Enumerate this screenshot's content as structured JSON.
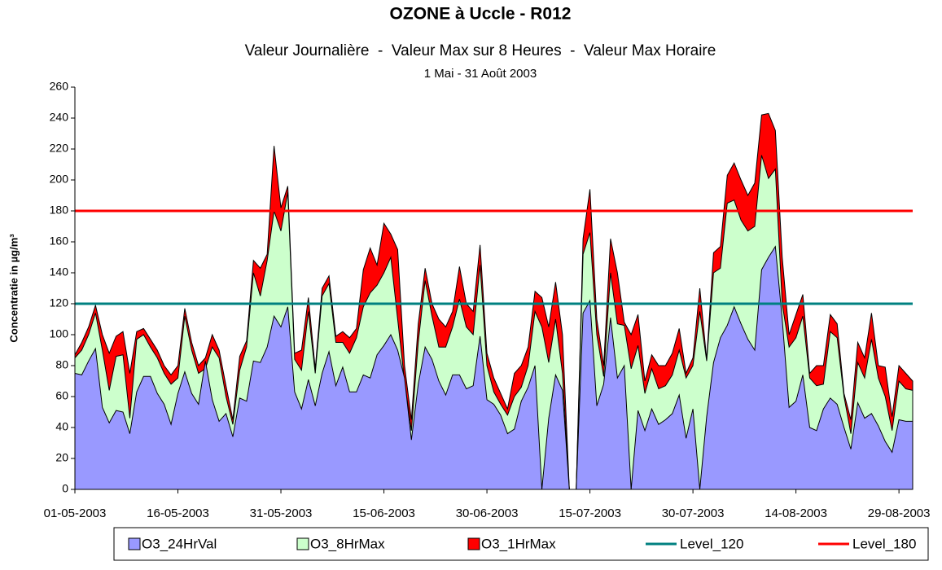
{
  "chart_data": {
    "type": "area",
    "title": "OZONE à Uccle - R012",
    "subtitle": "Valeur Journalière  -  Valeur Max sur 8 Heures  -  Valeur Max Horaire",
    "period": "1 Mai - 31 Août 2003",
    "y_label": "Concentratie in µg/m³",
    "categories": [
      "01-05-2003",
      "02-05-2003",
      "03-05-2003",
      "04-05-2003",
      "05-05-2003",
      "06-05-2003",
      "07-05-2003",
      "08-05-2003",
      "09-05-2003",
      "10-05-2003",
      "11-05-2003",
      "12-05-2003",
      "13-05-2003",
      "14-05-2003",
      "15-05-2003",
      "16-05-2003",
      "17-05-2003",
      "18-05-2003",
      "19-05-2003",
      "20-05-2003",
      "21-05-2003",
      "22-05-2003",
      "23-05-2003",
      "24-05-2003",
      "25-05-2003",
      "26-05-2003",
      "27-05-2003",
      "28-05-2003",
      "29-05-2003",
      "30-05-2003",
      "31-05-2003",
      "01-06-2003",
      "02-06-2003",
      "03-06-2003",
      "04-06-2003",
      "05-06-2003",
      "06-06-2003",
      "07-06-2003",
      "08-06-2003",
      "09-06-2003",
      "10-06-2003",
      "11-06-2003",
      "12-06-2003",
      "13-06-2003",
      "14-06-2003",
      "15-06-2003",
      "16-06-2003",
      "17-06-2003",
      "18-06-2003",
      "19-06-2003",
      "20-06-2003",
      "21-06-2003",
      "22-06-2003",
      "23-06-2003",
      "24-06-2003",
      "25-06-2003",
      "26-06-2003",
      "27-06-2003",
      "28-06-2003",
      "29-06-2003",
      "30-06-2003",
      "01-07-2003",
      "02-07-2003",
      "03-07-2003",
      "04-07-2003",
      "05-07-2003",
      "06-07-2003",
      "07-07-2003",
      "08-07-2003",
      "09-07-2003",
      "10-07-2003",
      "11-07-2003",
      "12-07-2003",
      "13-07-2003",
      "14-07-2003",
      "15-07-2003",
      "16-07-2003",
      "17-07-2003",
      "18-07-2003",
      "19-07-2003",
      "20-07-2003",
      "21-07-2003",
      "22-07-2003",
      "23-07-2003",
      "24-07-2003",
      "25-07-2003",
      "26-07-2003",
      "27-07-2003",
      "28-07-2003",
      "29-07-2003",
      "30-07-2003",
      "31-07-2003",
      "01-08-2003",
      "02-08-2003",
      "03-08-2003",
      "04-08-2003",
      "05-08-2003",
      "06-08-2003",
      "07-08-2003",
      "08-08-2003",
      "09-08-2003",
      "10-08-2003",
      "11-08-2003",
      "12-08-2003",
      "13-08-2003",
      "14-08-2003",
      "15-08-2003",
      "16-08-2003",
      "17-08-2003",
      "18-08-2003",
      "19-08-2003",
      "20-08-2003",
      "21-08-2003",
      "22-08-2003",
      "23-08-2003",
      "24-08-2003",
      "25-08-2003",
      "26-08-2003",
      "27-08-2003",
      "28-08-2003",
      "29-08-2003",
      "30-08-2003",
      "31-08-2003"
    ],
    "xticks": [
      "01-05-2003",
      "16-05-2003",
      "31-05-2003",
      "15-06-2003",
      "30-06-2003",
      "15-07-2003",
      "30-07-2003",
      "14-08-2003",
      "29-08-2003"
    ],
    "ylim": [
      0,
      260
    ],
    "yticks": [
      0,
      20,
      40,
      60,
      80,
      100,
      120,
      140,
      160,
      180,
      200,
      220,
      240,
      260
    ],
    "series": [
      {
        "name": "O3_24HrVal",
        "color": "#9999ff",
        "values": [
          75,
          74,
          83,
          91,
          53,
          43,
          51,
          50,
          36,
          63,
          73,
          73,
          62,
          55,
          42,
          62,
          76,
          62,
          55,
          83,
          58,
          44,
          49,
          34,
          59,
          57,
          83,
          82,
          92,
          112,
          105,
          118,
          63,
          52,
          71,
          54,
          75,
          89,
          67,
          79,
          63,
          63,
          74,
          72,
          87,
          93,
          100,
          90,
          72,
          32,
          68,
          92,
          84,
          70,
          61,
          74,
          74,
          65,
          67,
          99,
          58,
          55,
          48,
          36,
          39,
          57,
          66,
          80,
          0,
          46,
          74,
          64,
          0,
          0,
          114,
          122,
          54,
          68,
          111,
          72,
          80,
          0,
          51,
          38,
          52,
          42,
          45,
          49,
          61,
          33,
          52,
          0,
          47,
          82,
          98,
          106,
          118,
          107,
          97,
          90,
          142,
          150,
          157,
          110,
          53,
          57,
          74,
          40,
          38,
          52,
          59,
          55,
          40,
          26,
          56,
          46,
          49,
          41,
          31,
          24,
          45,
          44,
          44
        ]
      },
      {
        "name": "O3_8HrMax",
        "color": "#ccffcc",
        "values": [
          85,
          90,
          100,
          114,
          90,
          64,
          86,
          87,
          46,
          97,
          100,
          92,
          85,
          75,
          68,
          72,
          112,
          90,
          75,
          78,
          92,
          85,
          60,
          42,
          77,
          92,
          140,
          125,
          148,
          180,
          167,
          192,
          84,
          77,
          115,
          75,
          125,
          133,
          95,
          95,
          88,
          98,
          118,
          127,
          132,
          140,
          150,
          110,
          70,
          38,
          95,
          135,
          112,
          92,
          92,
          105,
          123,
          105,
          100,
          145,
          80,
          63,
          55,
          48,
          60,
          66,
          80,
          115,
          105,
          82,
          110,
          75,
          0,
          0,
          152,
          166,
          100,
          73,
          140,
          107,
          106,
          78,
          93,
          62,
          78,
          65,
          67,
          74,
          90,
          72,
          80,
          115,
          83,
          140,
          143,
          185,
          187,
          174,
          167,
          170,
          216,
          201,
          207,
          120,
          92,
          98,
          112,
          72,
          67,
          68,
          102,
          98,
          60,
          36,
          82,
          72,
          97,
          72,
          60,
          38,
          70,
          65,
          64
        ]
      },
      {
        "name": "O3_1HrMax",
        "color": "#ff0000",
        "values": [
          87,
          95,
          105,
          119,
          100,
          88,
          99,
          102,
          75,
          102,
          104,
          97,
          90,
          80,
          74,
          80,
          117,
          95,
          80,
          85,
          100,
          90,
          67,
          45,
          86,
          96,
          148,
          143,
          152,
          222,
          182,
          196,
          88,
          90,
          124,
          78,
          130,
          138,
          99,
          102,
          98,
          104,
          142,
          156,
          145,
          172,
          165,
          155,
          80,
          45,
          107,
          143,
          120,
          110,
          105,
          115,
          144,
          120,
          115,
          158,
          88,
          72,
          62,
          52,
          75,
          80,
          92,
          128,
          124,
          105,
          134,
          100,
          0,
          0,
          162,
          194,
          110,
          80,
          162,
          140,
          108,
          100,
          113,
          70,
          87,
          80,
          80,
          88,
          104,
          75,
          85,
          130,
          84,
          153,
          157,
          203,
          211,
          200,
          190,
          198,
          242,
          243,
          232,
          150,
          100,
          113,
          126,
          75,
          80,
          80,
          113,
          107,
          62,
          45,
          95,
          85,
          114,
          80,
          79,
          47,
          80,
          75,
          70
        ]
      }
    ],
    "levels": [
      {
        "name": "Level_120",
        "color": "#008080",
        "value": 120
      },
      {
        "name": "Level_180",
        "color": "#ff0000",
        "value": 180
      }
    ]
  }
}
